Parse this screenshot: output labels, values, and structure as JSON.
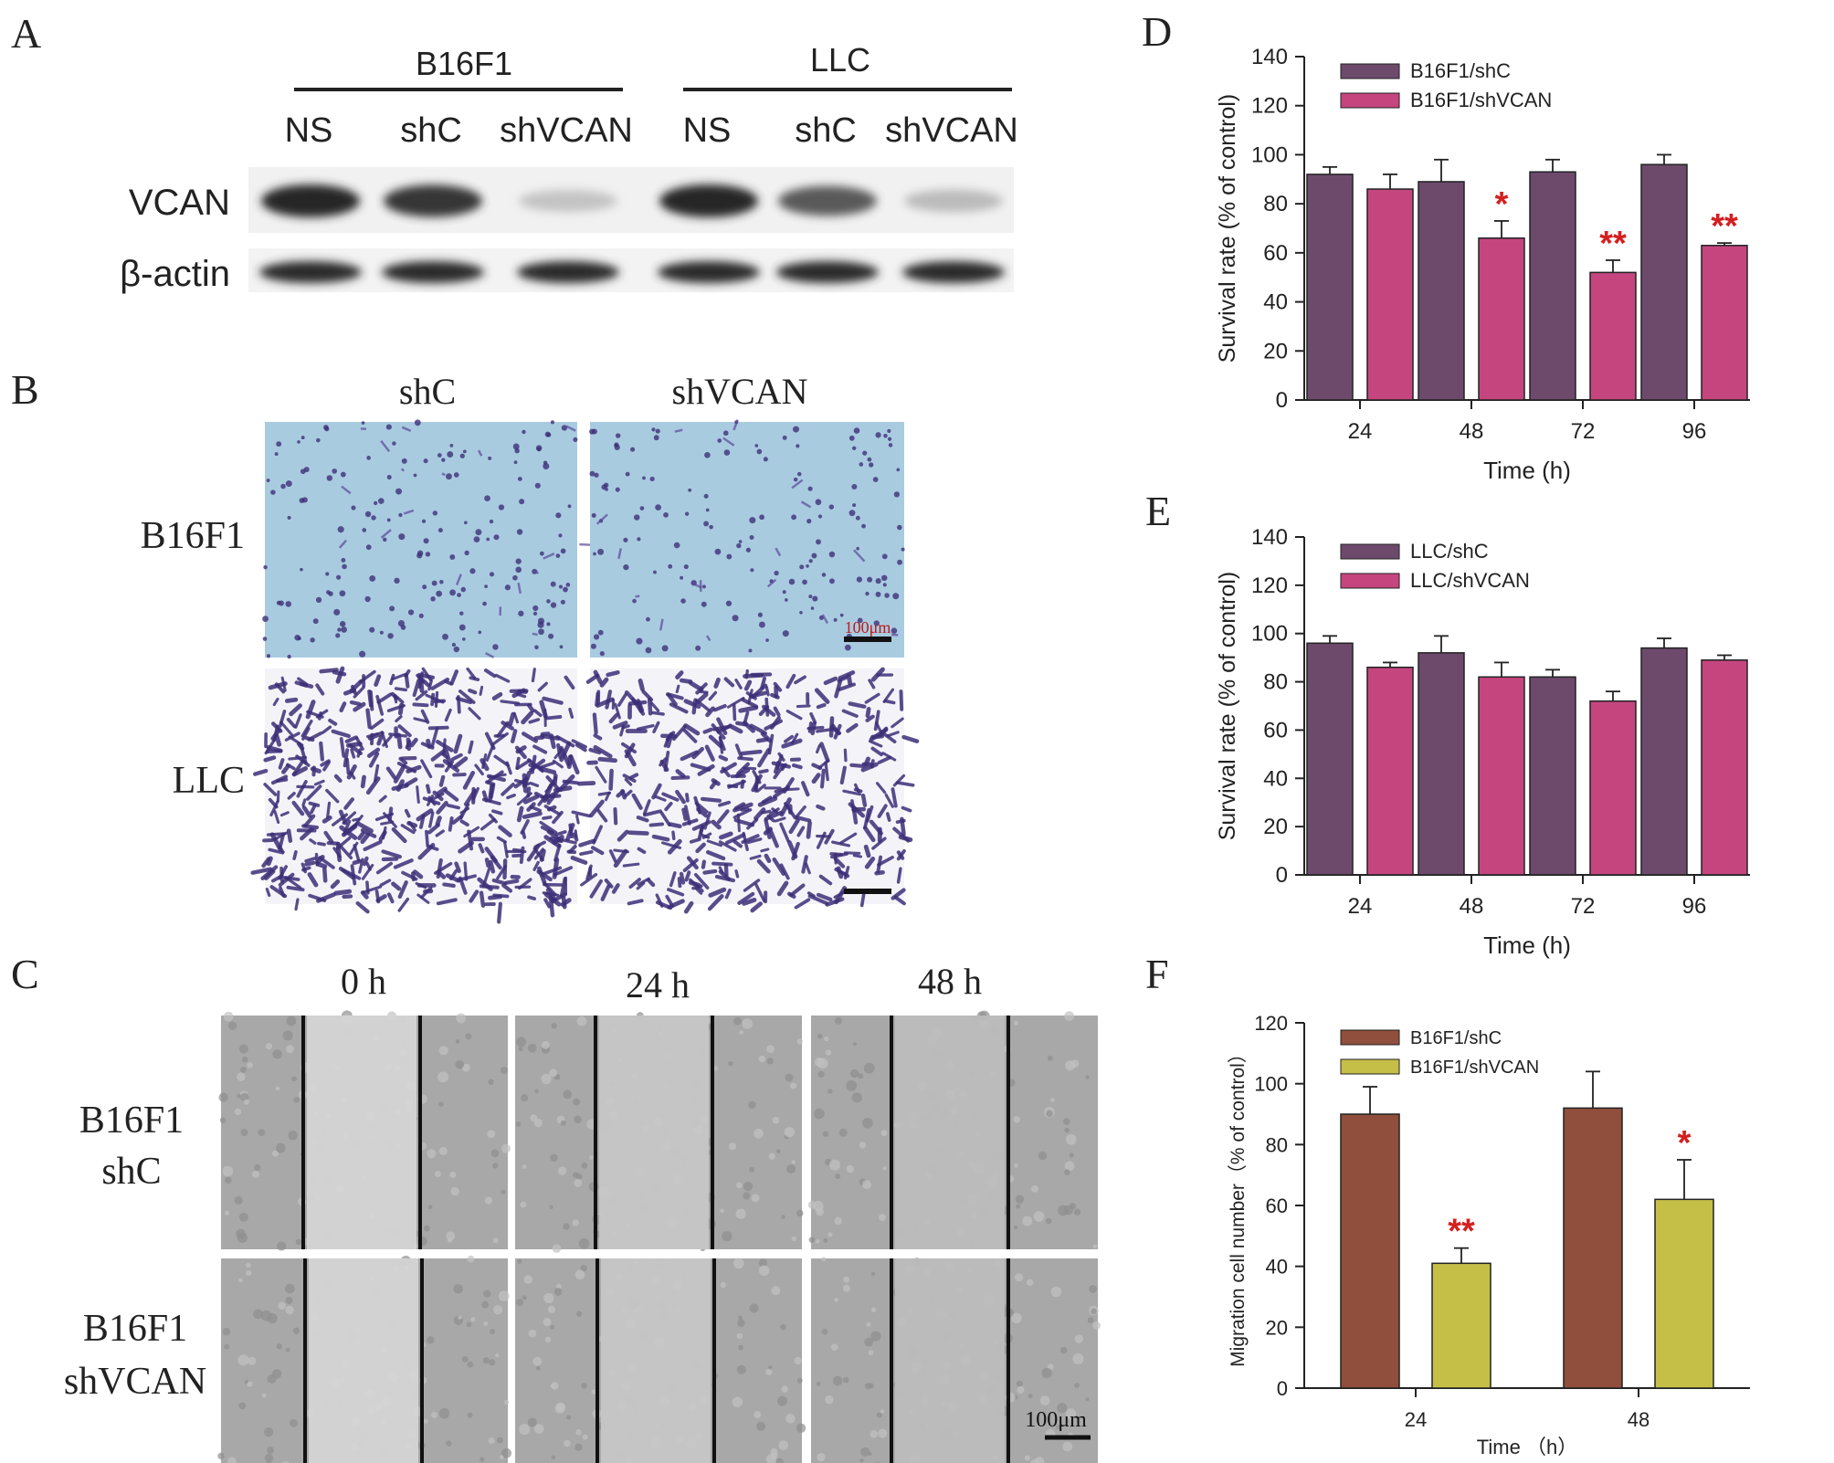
{
  "panels": {
    "A": {
      "letter": "A",
      "group1": "B16F1",
      "group2": "LLC",
      "lanes": [
        "NS",
        "shC",
        "shVCAN",
        "NS",
        "shC",
        "shVCAN"
      ],
      "row1": "VCAN",
      "row2": "β-actin",
      "vcan_intensity": [
        1.0,
        0.95,
        0.25,
        1.0,
        0.8,
        0.3
      ],
      "actin_intensity": [
        1.0,
        1.0,
        1.0,
        1.0,
        1.0,
        1.0
      ]
    },
    "B": {
      "letter": "B",
      "col1": "shC",
      "col2": "shVCAN",
      "row1": "B16F1",
      "row2": "LLC",
      "scale": "100μm",
      "colors": {
        "b16_bg": "#a9cbe0",
        "cell": "#3d2f78",
        "llc_bg": "#f4f4f8"
      }
    },
    "C": {
      "letter": "C",
      "cols": [
        "0 h",
        "24 h",
        "48 h"
      ],
      "row1_line1": "B16F1",
      "row1_line2": "shC",
      "row2_line1": "B16F1",
      "row2_line2": "shVCAN",
      "scale": "100μm"
    },
    "D": {
      "letter": "D",
      "legend": [
        "B16F1/shC",
        "B16F1/shVCAN"
      ],
      "stars": [
        "",
        "*",
        "**",
        "**"
      ]
    },
    "E": {
      "letter": "E",
      "legend": [
        "LLC/shC",
        "LLC/shVCAN"
      ]
    },
    "F": {
      "letter": "F",
      "legend": [
        "B16F1/shC",
        "B16F1/shVCAN"
      ],
      "stars": [
        "**",
        "*"
      ]
    }
  },
  "chart_data": [
    {
      "panel": "D",
      "type": "bar",
      "categories": [
        "24",
        "48",
        "72",
        "96"
      ],
      "series": [
        {
          "name": "B16F1/shC",
          "values": [
            92,
            89,
            93,
            96
          ],
          "errors": [
            3,
            9,
            5,
            4
          ],
          "color": "#6d4a6c"
        },
        {
          "name": "B16F1/shVCAN",
          "values": [
            86,
            66,
            52,
            63
          ],
          "errors": [
            6,
            7,
            5,
            1
          ],
          "color": "#c5467f"
        }
      ],
      "xlabel": "Time (h)",
      "ylabel": "Survival rate (% of control)",
      "ylim": [
        0,
        140
      ],
      "yticks": [
        0,
        20,
        40,
        60,
        80,
        100,
        120,
        140
      ],
      "legend_position": "top-left"
    },
    {
      "panel": "E",
      "type": "bar",
      "categories": [
        "24",
        "48",
        "72",
        "96"
      ],
      "series": [
        {
          "name": "LLC/shC",
          "values": [
            96,
            92,
            82,
            94
          ],
          "errors": [
            3,
            7,
            3,
            4
          ],
          "color": "#6d4a6c"
        },
        {
          "name": "LLC/shVCAN",
          "values": [
            86,
            82,
            72,
            89
          ],
          "errors": [
            2,
            6,
            4,
            2
          ],
          "color": "#c5467f"
        }
      ],
      "xlabel": "Time (h)",
      "ylabel": "Survival rate (% of control)",
      "ylim": [
        0,
        140
      ],
      "yticks": [
        0,
        20,
        40,
        60,
        80,
        100,
        120,
        140
      ],
      "legend_position": "top-left"
    },
    {
      "panel": "F",
      "type": "bar",
      "categories": [
        "24",
        "48"
      ],
      "series": [
        {
          "name": "B16F1/shC",
          "values": [
            90,
            92
          ],
          "errors": [
            9,
            12
          ],
          "color": "#8f4f3c"
        },
        {
          "name": "B16F1/shVCAN",
          "values": [
            41,
            62
          ],
          "errors": [
            5,
            13
          ],
          "color": "#c5bf48"
        }
      ],
      "xlabel": "Time （h）",
      "ylabel": "Migration cell number（% of control）",
      "ylim": [
        0,
        120
      ],
      "yticks": [
        0,
        20,
        40,
        60,
        80,
        100,
        120
      ],
      "legend_position": "top-left"
    }
  ]
}
